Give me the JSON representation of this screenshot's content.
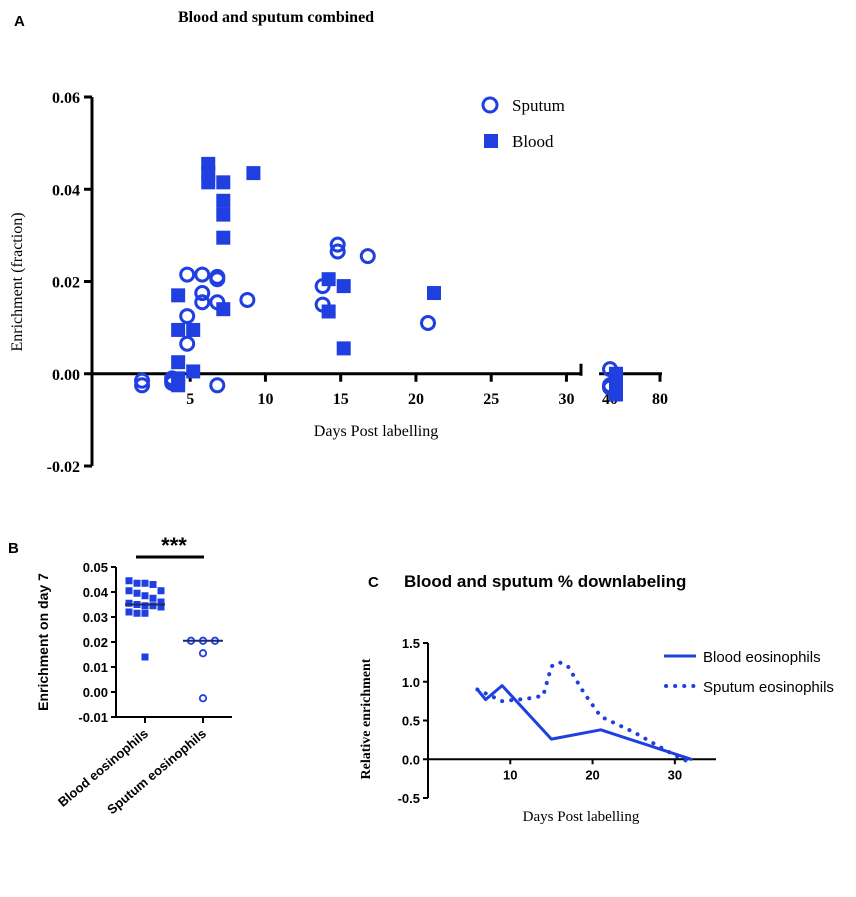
{
  "panel_labels": {
    "a": "A",
    "b": "B",
    "c": "C"
  },
  "colors": {
    "accent": "#1f3fe0",
    "axis": "#000000"
  },
  "chart_data": [
    {
      "id": "A",
      "type": "scatter",
      "title": "Blood and sputum combined",
      "xlabel": "Days Post labelling",
      "ylabel": "Enrichment (fraction)",
      "ylim": [
        -0.02,
        0.06
      ],
      "yticks": [
        "0.06",
        "0.04",
        "0.02",
        "0.00",
        "-0.02"
      ],
      "xticks": [
        "5",
        "10",
        "15",
        "20",
        "25",
        "30",
        "40",
        "80"
      ],
      "x_axis_note": "x axis crosses at y = 0; segmented axis: 0-30 linear, break, then 40 and 80",
      "legend": {
        "placement": "top-right",
        "entries": [
          "Sputum",
          "Blood"
        ]
      },
      "series": [
        {
          "name": "Sputum",
          "marker": "open-circle",
          "points": [
            [
              2,
              -0.0015
            ],
            [
              2,
              -0.0025
            ],
            [
              4,
              -0.001
            ],
            [
              4,
              -0.0015
            ],
            [
              4,
              -0.002
            ],
            [
              5,
              0.0215
            ],
            [
              5,
              0.0125
            ],
            [
              5,
              0.0065
            ],
            [
              6,
              0.0215
            ],
            [
              6,
              0.0175
            ],
            [
              6,
              0.0155
            ],
            [
              7,
              0.021
            ],
            [
              7,
              0.0205
            ],
            [
              7,
              0.0155
            ],
            [
              7,
              -0.0025
            ],
            [
              9,
              0.016
            ],
            [
              14,
              0.019
            ],
            [
              14,
              0.015
            ],
            [
              15,
              0.028
            ],
            [
              15,
              0.0265
            ],
            [
              17,
              0.0255
            ],
            [
              21,
              0.011
            ],
            [
              40,
              0.001
            ],
            [
              40,
              -0.0025
            ],
            [
              40,
              -0.003
            ]
          ]
        },
        {
          "name": "Blood",
          "marker": "filled-square",
          "points": [
            [
              4,
              0.017
            ],
            [
              4,
              0.0095
            ],
            [
              4,
              0.0025
            ],
            [
              4,
              -0.001
            ],
            [
              4,
              -0.0025
            ],
            [
              5,
              0.0095
            ],
            [
              5,
              0.0005
            ],
            [
              6,
              0.0455
            ],
            [
              6,
              0.0435
            ],
            [
              6,
              0.0415
            ],
            [
              7,
              0.0415
            ],
            [
              7,
              0.0375
            ],
            [
              7,
              0.0345
            ],
            [
              7,
              0.0295
            ],
            [
              7,
              0.014
            ],
            [
              9,
              0.0435
            ],
            [
              14,
              0.0205
            ],
            [
              14,
              0.0135
            ],
            [
              15,
              0.019
            ],
            [
              15,
              0.0055
            ],
            [
              21,
              0.0175
            ],
            [
              40,
              0.0
            ],
            [
              40,
              -0.002
            ],
            [
              40,
              -0.003
            ],
            [
              40,
              -0.0045
            ]
          ]
        }
      ]
    },
    {
      "id": "B",
      "type": "scatter",
      "title": "",
      "ylabel": "Enrichment on day 7",
      "ylim": [
        -0.01,
        0.05
      ],
      "yticks": [
        "0.05",
        "0.04",
        "0.03",
        "0.02",
        "0.01",
        "0.00",
        "-0.01"
      ],
      "categories": [
        "Blood eosinophils",
        "Sputum eosinophils"
      ],
      "significance": "***",
      "series": [
        {
          "name": "Blood eosinophils",
          "marker": "filled-square",
          "median": 0.035,
          "values": [
            0.0445,
            0.0435,
            0.0435,
            0.043,
            0.0405,
            0.0405,
            0.0395,
            0.0385,
            0.0375,
            0.036,
            0.0355,
            0.035,
            0.0345,
            0.0345,
            0.034,
            0.032,
            0.0315,
            0.0315,
            0.014
          ]
        },
        {
          "name": "Sputum eosinophils",
          "marker": "open-circle",
          "median": 0.0205,
          "values": [
            0.0205,
            0.0205,
            0.0205,
            0.0155,
            -0.0025
          ]
        }
      ]
    },
    {
      "id": "C",
      "type": "line",
      "title": "Blood and sputum % downlabeling",
      "xlabel": "Days Post labelling",
      "ylabel": "Relative enrichment",
      "xlim": [
        0,
        35
      ],
      "ylim": [
        -0.5,
        1.5
      ],
      "xticks": [
        "10",
        "20",
        "30"
      ],
      "yticks": [
        "1.5",
        "1.0",
        "0.5",
        "0.0",
        "-0.5"
      ],
      "legend": {
        "placement": "top-right",
        "entries": [
          "Blood eosinophils",
          "Sputum eosinophils"
        ]
      },
      "series": [
        {
          "name": "Blood eosinophils",
          "style": "solid",
          "x": [
            6,
            7,
            9,
            15,
            21,
            32
          ],
          "y": [
            0.9,
            0.77,
            0.95,
            0.26,
            0.38,
            0.0
          ]
        },
        {
          "name": "Sputum eosinophils",
          "style": "dotted",
          "x": [
            6,
            7,
            9,
            12,
            14,
            15,
            16,
            17,
            19,
            21,
            25,
            30,
            32
          ],
          "y": [
            0.9,
            0.85,
            0.75,
            0.78,
            0.82,
            1.2,
            1.25,
            1.2,
            0.85,
            0.55,
            0.35,
            0.05,
            -0.05
          ]
        }
      ]
    }
  ]
}
